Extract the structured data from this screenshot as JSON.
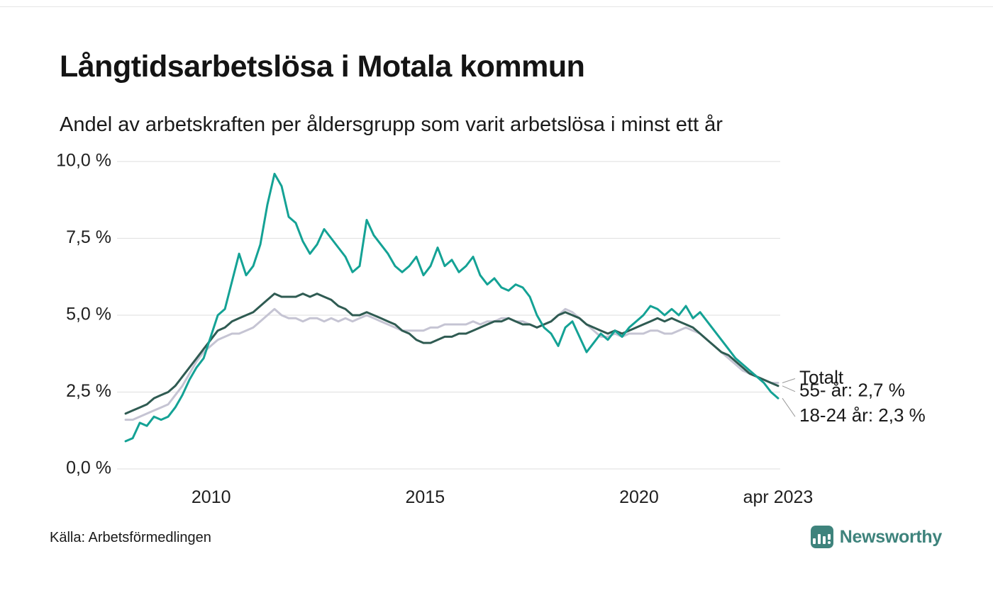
{
  "header": {
    "title": "Långtidsarbetslösa i Motala kommun",
    "subtitle": "Andel av arbetskraften per åldersgrupp som varit arbetslösa i minst ett år"
  },
  "footer": {
    "source": "Källa: Arbetsförmedlingen",
    "brand": "Newsworthy"
  },
  "colors": {
    "series_18_24": "#14a295",
    "series_55": "#2f5b52",
    "series_total": "#c5c4d3",
    "grid": "#e3e3e3",
    "axis_text": "#1f1f1f",
    "annotation_text": "#1a1a1a",
    "leader_line": "#9a9a9a",
    "brand_teal": "#3e837c"
  },
  "chart_data": {
    "type": "line",
    "title": "Långtidsarbetslösa i Motala kommun",
    "subtitle": "Andel av arbetskraften per åldersgrupp som varit arbetslösa i minst ett år",
    "xlabel": "",
    "ylabel": "",
    "ylim": [
      0,
      10
    ],
    "xlim": [
      2007.8,
      2023.3
    ],
    "grid": "horizontal",
    "legend": "inline-annotations",
    "x_start": 2008.0,
    "x_end": 2023.25,
    "x_unit": "year (monthly samples, Jan 2008 – Apr 2023)",
    "y_unit": "percent of labour force",
    "y_ticks": [
      {
        "value": 0,
        "label": "0,0 %"
      },
      {
        "value": 2.5,
        "label": "2,5 %"
      },
      {
        "value": 5,
        "label": "5,0 %"
      },
      {
        "value": 7.5,
        "label": "7,5 %"
      },
      {
        "value": 10,
        "label": "10,0 %"
      }
    ],
    "x_ticks": [
      {
        "value": 2010,
        "label": "2010"
      },
      {
        "value": 2015,
        "label": "2015"
      },
      {
        "value": 2020,
        "label": "2020"
      },
      {
        "value": 2023.25,
        "label": "apr 2023"
      }
    ],
    "series": [
      {
        "name": "18-24 år",
        "color_key": "series_18_24",
        "end_label": "18-24 år: 2,3 %",
        "end_value": 2.3,
        "values": [
          0.9,
          1.0,
          1.5,
          1.4,
          1.7,
          1.6,
          1.7,
          2.0,
          2.4,
          2.9,
          3.3,
          3.6,
          4.3,
          5.0,
          5.2,
          6.1,
          7.0,
          6.3,
          6.6,
          7.3,
          8.6,
          9.6,
          9.2,
          8.2,
          8.0,
          7.4,
          7.0,
          7.3,
          7.8,
          7.5,
          7.2,
          6.9,
          6.4,
          6.6,
          8.1,
          7.6,
          7.3,
          7.0,
          6.6,
          6.4,
          6.6,
          6.9,
          6.3,
          6.6,
          7.2,
          6.6,
          6.8,
          6.4,
          6.6,
          6.9,
          6.3,
          6.0,
          6.2,
          5.9,
          5.8,
          6.0,
          5.9,
          5.6,
          5.0,
          4.6,
          4.4,
          4.0,
          4.6,
          4.8,
          4.3,
          3.8,
          4.1,
          4.4,
          4.2,
          4.5,
          4.3,
          4.6,
          4.8,
          5.0,
          5.3,
          5.2,
          5.0,
          5.2,
          5.0,
          5.3,
          4.9,
          5.1,
          4.8,
          4.5,
          4.2,
          3.9,
          3.6,
          3.4,
          3.2,
          3.0,
          2.8,
          2.5,
          2.3
        ]
      },
      {
        "name": "55- år",
        "color_key": "series_55",
        "end_label": "55- år: 2,7 %",
        "end_value": 2.7,
        "values": [
          1.8,
          1.9,
          2.0,
          2.1,
          2.3,
          2.4,
          2.5,
          2.7,
          3.0,
          3.3,
          3.6,
          3.9,
          4.2,
          4.5,
          4.6,
          4.8,
          4.9,
          5.0,
          5.1,
          5.3,
          5.5,
          5.7,
          5.6,
          5.6,
          5.6,
          5.7,
          5.6,
          5.7,
          5.6,
          5.5,
          5.3,
          5.2,
          5.0,
          5.0,
          5.1,
          5.0,
          4.9,
          4.8,
          4.7,
          4.5,
          4.4,
          4.2,
          4.1,
          4.1,
          4.2,
          4.3,
          4.3,
          4.4,
          4.4,
          4.5,
          4.6,
          4.7,
          4.8,
          4.8,
          4.9,
          4.8,
          4.7,
          4.7,
          4.6,
          4.7,
          4.8,
          5.0,
          5.1,
          5.0,
          4.9,
          4.7,
          4.6,
          4.5,
          4.4,
          4.5,
          4.4,
          4.5,
          4.6,
          4.7,
          4.8,
          4.9,
          4.8,
          4.9,
          4.8,
          4.7,
          4.6,
          4.4,
          4.2,
          4.0,
          3.8,
          3.7,
          3.5,
          3.3,
          3.1,
          3.0,
          2.9,
          2.8,
          2.7
        ]
      },
      {
        "name": "Totalt",
        "color_key": "series_total",
        "end_label": "Totalt",
        "end_value": 2.8,
        "values": [
          1.6,
          1.6,
          1.7,
          1.8,
          1.9,
          2.0,
          2.1,
          2.4,
          2.7,
          3.1,
          3.5,
          3.8,
          4.0,
          4.2,
          4.3,
          4.4,
          4.4,
          4.5,
          4.6,
          4.8,
          5.0,
          5.2,
          5.0,
          4.9,
          4.9,
          4.8,
          4.9,
          4.9,
          4.8,
          4.9,
          4.8,
          4.9,
          4.8,
          4.9,
          5.0,
          4.9,
          4.8,
          4.7,
          4.6,
          4.5,
          4.5,
          4.5,
          4.5,
          4.6,
          4.6,
          4.7,
          4.7,
          4.7,
          4.7,
          4.8,
          4.7,
          4.8,
          4.8,
          4.9,
          4.9,
          4.8,
          4.8,
          4.7,
          4.6,
          4.7,
          4.8,
          5.0,
          5.2,
          5.1,
          4.9,
          4.7,
          4.5,
          4.3,
          4.3,
          4.4,
          4.3,
          4.4,
          4.4,
          4.4,
          4.5,
          4.5,
          4.4,
          4.4,
          4.5,
          4.6,
          4.5,
          4.4,
          4.2,
          4.0,
          3.8,
          3.6,
          3.4,
          3.2,
          3.1,
          3.0,
          2.9,
          2.8,
          2.8
        ]
      }
    ],
    "annotations": [
      {
        "text": "Totalt",
        "series": "Totalt"
      },
      {
        "text": "55- år: 2,7 %",
        "series": "55- år"
      },
      {
        "text": "18-24 år: 2,3 %",
        "series": "18-24 år"
      }
    ]
  }
}
